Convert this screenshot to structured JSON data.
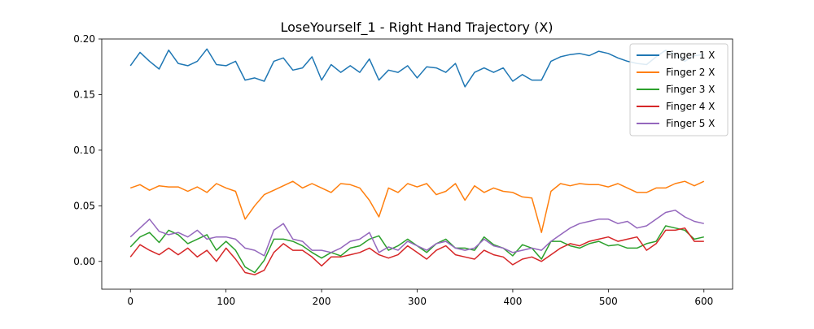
{
  "chart_data": {
    "type": "line",
    "title": "LoseYourself_1 - Right Hand Trajectory (X)",
    "xlabel": "",
    "ylabel": "",
    "xlim": [
      -30,
      630
    ],
    "ylim": [
      -0.025,
      0.2
    ],
    "xticks": [
      0,
      100,
      200,
      300,
      400,
      500,
      600
    ],
    "yticks": [
      0.0,
      0.05,
      0.1,
      0.15,
      0.2
    ],
    "xtick_labels": [
      "0",
      "100",
      "200",
      "300",
      "400",
      "500",
      "600"
    ],
    "ytick_labels": [
      "0.00",
      "0.05",
      "0.10",
      "0.15",
      "0.20"
    ],
    "grid": false,
    "legend_position": "top-right",
    "x": [
      0,
      10,
      20,
      30,
      40,
      50,
      60,
      70,
      80,
      90,
      100,
      110,
      120,
      130,
      140,
      150,
      160,
      170,
      180,
      190,
      200,
      210,
      220,
      230,
      240,
      250,
      260,
      270,
      280,
      290,
      300,
      310,
      320,
      330,
      340,
      350,
      360,
      370,
      380,
      390,
      400,
      410,
      420,
      430,
      440,
      450,
      460,
      470,
      480,
      490,
      500,
      510,
      520,
      530,
      540,
      550,
      560,
      570,
      580,
      590,
      600
    ],
    "series": [
      {
        "name": "Finger 1 X",
        "color": "#1f77b4",
        "values": [
          0.176,
          0.188,
          0.18,
          0.173,
          0.19,
          0.178,
          0.176,
          0.18,
          0.191,
          0.177,
          0.176,
          0.18,
          0.163,
          0.165,
          0.162,
          0.18,
          0.183,
          0.172,
          0.174,
          0.184,
          0.163,
          0.177,
          0.17,
          0.176,
          0.17,
          0.182,
          0.163,
          0.172,
          0.17,
          0.176,
          0.165,
          0.175,
          0.174,
          0.17,
          0.178,
          0.157,
          0.17,
          0.174,
          0.17,
          0.174,
          0.162,
          0.168,
          0.163,
          0.163,
          0.18,
          0.184,
          0.186,
          0.187,
          0.185,
          0.189,
          0.187,
          0.183,
          0.18,
          0.178,
          0.177,
          0.184,
          0.19,
          0.186,
          0.18,
          0.185,
          0.186
        ]
      },
      {
        "name": "Finger 2 X",
        "color": "#ff7f0e",
        "values": [
          0.066,
          0.069,
          0.064,
          0.068,
          0.067,
          0.067,
          0.063,
          0.067,
          0.062,
          0.07,
          0.066,
          0.063,
          0.038,
          0.05,
          0.06,
          0.064,
          0.068,
          0.072,
          0.066,
          0.07,
          0.066,
          0.062,
          0.07,
          0.069,
          0.066,
          0.055,
          0.04,
          0.066,
          0.062,
          0.07,
          0.067,
          0.07,
          0.06,
          0.063,
          0.07,
          0.055,
          0.068,
          0.062,
          0.066,
          0.063,
          0.062,
          0.058,
          0.057,
          0.026,
          0.063,
          0.07,
          0.068,
          0.07,
          0.069,
          0.069,
          0.067,
          0.07,
          0.066,
          0.062,
          0.062,
          0.066,
          0.066,
          0.07,
          0.072,
          0.068,
          0.072
        ]
      },
      {
        "name": "Finger 3 X",
        "color": "#2ca02c",
        "values": [
          0.013,
          0.022,
          0.026,
          0.017,
          0.028,
          0.024,
          0.016,
          0.02,
          0.024,
          0.01,
          0.018,
          0.01,
          -0.005,
          -0.01,
          0.001,
          0.02,
          0.02,
          0.018,
          0.014,
          0.008,
          0.003,
          0.008,
          0.005,
          0.012,
          0.014,
          0.02,
          0.023,
          0.01,
          0.014,
          0.02,
          0.014,
          0.008,
          0.016,
          0.02,
          0.012,
          0.012,
          0.01,
          0.022,
          0.015,
          0.012,
          0.005,
          0.015,
          0.012,
          0.002,
          0.018,
          0.018,
          0.014,
          0.012,
          0.016,
          0.018,
          0.014,
          0.015,
          0.012,
          0.012,
          0.016,
          0.018,
          0.032,
          0.03,
          0.028,
          0.02,
          0.022
        ]
      },
      {
        "name": "Finger 4 X",
        "color": "#d62728",
        "values": [
          0.004,
          0.015,
          0.01,
          0.006,
          0.012,
          0.006,
          0.012,
          0.004,
          0.01,
          0.0,
          0.012,
          0.002,
          -0.01,
          -0.012,
          -0.008,
          0.008,
          0.016,
          0.01,
          0.01,
          0.004,
          -0.004,
          0.004,
          0.004,
          0.006,
          0.008,
          0.012,
          0.006,
          0.003,
          0.006,
          0.014,
          0.008,
          0.002,
          0.01,
          0.014,
          0.006,
          0.004,
          0.002,
          0.01,
          0.006,
          0.004,
          -0.003,
          0.002,
          0.004,
          0.0,
          0.006,
          0.012,
          0.016,
          0.014,
          0.018,
          0.02,
          0.022,
          0.018,
          0.02,
          0.022,
          0.01,
          0.016,
          0.028,
          0.028,
          0.03,
          0.018,
          0.018
        ]
      },
      {
        "name": "Finger 5 X",
        "color": "#9467bd",
        "values": [
          0.022,
          0.03,
          0.038,
          0.027,
          0.024,
          0.026,
          0.022,
          0.028,
          0.02,
          0.022,
          0.022,
          0.02,
          0.012,
          0.01,
          0.005,
          0.028,
          0.034,
          0.02,
          0.018,
          0.01,
          0.01,
          0.008,
          0.012,
          0.018,
          0.02,
          0.026,
          0.008,
          0.013,
          0.01,
          0.018,
          0.014,
          0.01,
          0.016,
          0.018,
          0.012,
          0.01,
          0.012,
          0.02,
          0.014,
          0.012,
          0.008,
          0.01,
          0.012,
          0.01,
          0.018,
          0.024,
          0.03,
          0.034,
          0.036,
          0.038,
          0.038,
          0.034,
          0.036,
          0.03,
          0.032,
          0.038,
          0.044,
          0.046,
          0.04,
          0.036,
          0.034
        ]
      }
    ]
  }
}
